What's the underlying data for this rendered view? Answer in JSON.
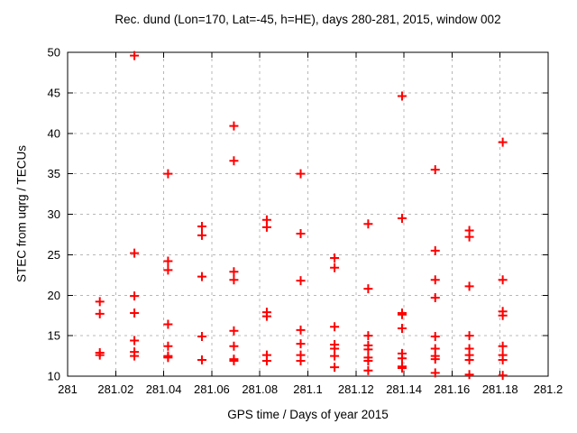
{
  "chart_data": {
    "type": "scatter",
    "title": "Rec. dund (Lon=170, Lat=-45, h=HE), days 280-281, 2015, window 002",
    "xlabel": "GPS time / Days of year 2015",
    "ylabel": "STEC from uqrg / TECUs",
    "xlim": [
      281,
      281.2
    ],
    "ylim": [
      10,
      50
    ],
    "grid": true,
    "legend_position": "none",
    "marker": {
      "shape": "plus",
      "color": "#ff0000",
      "size": 10,
      "stroke_width": 2
    },
    "colors": {
      "border": "#000000",
      "grid": "#b8b8b8",
      "text": "#000000",
      "background": "#ffffff"
    },
    "x_ticks": [
      {
        "value": 281.0,
        "label": "281"
      },
      {
        "value": 281.02,
        "label": "281.02"
      },
      {
        "value": 281.04,
        "label": "281.04"
      },
      {
        "value": 281.06,
        "label": "281.06"
      },
      {
        "value": 281.08,
        "label": "281.08"
      },
      {
        "value": 281.1,
        "label": "281.1"
      },
      {
        "value": 281.12,
        "label": "281.12"
      },
      {
        "value": 281.14,
        "label": "281.14"
      },
      {
        "value": 281.16,
        "label": "281.16"
      },
      {
        "value": 281.18,
        "label": "281.18"
      },
      {
        "value": 281.2,
        "label": "281.2"
      }
    ],
    "y_ticks": [
      {
        "value": 10,
        "label": "10"
      },
      {
        "value": 15,
        "label": "15"
      },
      {
        "value": 20,
        "label": "20"
      },
      {
        "value": 25,
        "label": "25"
      },
      {
        "value": 30,
        "label": "30"
      },
      {
        "value": 35,
        "label": "35"
      },
      {
        "value": 40,
        "label": "40"
      },
      {
        "value": 45,
        "label": "45"
      },
      {
        "value": 50,
        "label": "50"
      }
    ],
    "points": [
      [
        281.0134,
        19.2
      ],
      [
        281.0134,
        17.7
      ],
      [
        281.0134,
        12.9
      ],
      [
        281.0134,
        12.6
      ],
      [
        281.0278,
        49.6
      ],
      [
        281.0278,
        25.2
      ],
      [
        281.0278,
        19.9
      ],
      [
        281.0278,
        17.8
      ],
      [
        281.0278,
        14.4
      ],
      [
        281.0278,
        13.0
      ],
      [
        281.0278,
        12.5
      ],
      [
        281.0418,
        35.0
      ],
      [
        281.0418,
        24.2
      ],
      [
        281.0418,
        23.1
      ],
      [
        281.0418,
        16.4
      ],
      [
        281.0418,
        13.7
      ],
      [
        281.0418,
        12.5
      ],
      [
        281.0418,
        12.3
      ],
      [
        281.0559,
        28.5
      ],
      [
        281.0559,
        27.4
      ],
      [
        281.0559,
        22.3
      ],
      [
        281.0559,
        14.9
      ],
      [
        281.0559,
        12.0
      ],
      [
        281.0692,
        40.9
      ],
      [
        281.0692,
        36.6
      ],
      [
        281.0692,
        22.9
      ],
      [
        281.0692,
        21.9
      ],
      [
        281.0692,
        15.6
      ],
      [
        281.0692,
        13.7
      ],
      [
        281.0692,
        12.1
      ],
      [
        281.0692,
        11.9
      ],
      [
        281.0829,
        29.3
      ],
      [
        281.0829,
        28.4
      ],
      [
        281.0829,
        17.9
      ],
      [
        281.0829,
        17.4
      ],
      [
        281.0829,
        12.6
      ],
      [
        281.0829,
        11.9
      ],
      [
        281.097,
        35.0
      ],
      [
        281.097,
        27.6
      ],
      [
        281.097,
        21.8
      ],
      [
        281.097,
        15.7
      ],
      [
        281.097,
        14.0
      ],
      [
        281.097,
        12.6
      ],
      [
        281.097,
        11.9
      ],
      [
        281.1111,
        24.6
      ],
      [
        281.1111,
        23.4
      ],
      [
        281.1111,
        16.1
      ],
      [
        281.1111,
        13.9
      ],
      [
        281.1111,
        13.4
      ],
      [
        281.1111,
        12.5
      ],
      [
        281.1111,
        11.1
      ],
      [
        281.1251,
        28.8
      ],
      [
        281.1251,
        20.8
      ],
      [
        281.1251,
        15.0
      ],
      [
        281.1251,
        13.8
      ],
      [
        281.1251,
        13.3
      ],
      [
        281.1251,
        12.3
      ],
      [
        281.1251,
        11.9
      ],
      [
        281.1251,
        10.7
      ],
      [
        281.1392,
        44.6
      ],
      [
        281.1392,
        29.5
      ],
      [
        281.1392,
        17.8
      ],
      [
        281.1392,
        17.6
      ],
      [
        281.1392,
        15.9
      ],
      [
        281.1392,
        12.8
      ],
      [
        281.1392,
        12.2
      ],
      [
        281.1392,
        11.2
      ],
      [
        281.1392,
        11.0
      ],
      [
        281.153,
        35.5
      ],
      [
        281.153,
        25.5
      ],
      [
        281.153,
        21.9
      ],
      [
        281.153,
        19.7
      ],
      [
        281.153,
        14.9
      ],
      [
        281.153,
        13.4
      ],
      [
        281.153,
        12.5
      ],
      [
        281.153,
        12.1
      ],
      [
        281.153,
        10.4
      ],
      [
        281.1672,
        28.0
      ],
      [
        281.1672,
        27.2
      ],
      [
        281.1672,
        21.1
      ],
      [
        281.1672,
        15.0
      ],
      [
        281.1672,
        13.4
      ],
      [
        281.1672,
        12.6
      ],
      [
        281.1672,
        12.0
      ],
      [
        281.1672,
        10.2
      ],
      [
        281.1811,
        38.9
      ],
      [
        281.1811,
        21.9
      ],
      [
        281.1811,
        18.0
      ],
      [
        281.1811,
        17.5
      ],
      [
        281.1811,
        13.7
      ],
      [
        281.1811,
        12.6
      ],
      [
        281.1811,
        12.0
      ],
      [
        281.1811,
        10.1
      ]
    ]
  }
}
